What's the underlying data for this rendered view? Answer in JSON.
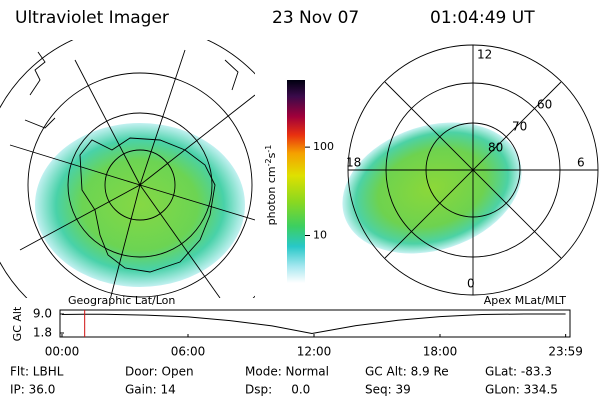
{
  "header": {
    "title": "Ultraviolet Imager",
    "date": "23 Nov 07",
    "time": "01:04:49 UT"
  },
  "left_map": {
    "label": "Geographic Lat/Lon"
  },
  "right_map": {
    "label": "Apex MLat/MLT",
    "mlt_labels": {
      "top": "12",
      "left": "18",
      "right": "6",
      "bottom": "0"
    },
    "mlat_labels": [
      "60",
      "70",
      "80"
    ]
  },
  "colorbar": {
    "label_parts": [
      "photon cm",
      "-2",
      "s",
      "-1"
    ],
    "log": true,
    "lim": [
      2.9,
      575
    ],
    "ticks": [
      10,
      100
    ]
  },
  "orbit_plot": {
    "y_label": "GC Alt",
    "yticks": [
      {
        "value": 9.0,
        "label": "9.0"
      },
      {
        "value": 1.8,
        "label": "1.8"
      }
    ],
    "xticks": [
      {
        "value": 0,
        "label": "00:00"
      },
      {
        "value": 6,
        "label": "06:00"
      },
      {
        "value": 12,
        "label": "12:00"
      },
      {
        "value": 18,
        "label": "18:00"
      },
      {
        "value": 23.983,
        "label": "23:59"
      }
    ],
    "x": [
      0,
      1,
      2,
      4,
      6,
      8,
      10,
      11.9,
      14,
      16,
      18,
      20,
      22,
      23.98
    ],
    "values": [
      8.8,
      8.9,
      8.9,
      8.6,
      7.9,
      6.5,
      4.5,
      1.6,
      4.6,
      6.6,
      8.0,
      8.8,
      9.0,
      9.0
    ],
    "current_hour": 1.08
  },
  "footer": {
    "rows": [
      [
        "Flt: LBHL",
        "Door: Open",
        "Mode: Normal",
        "GC Alt: 8.9 Re",
        "GLat: -83.3"
      ],
      [
        "IP: 36.0",
        "Gain: 14",
        "Dsp:     0.0",
        "Seq: 39",
        "GLon: 334.5"
      ]
    ]
  }
}
